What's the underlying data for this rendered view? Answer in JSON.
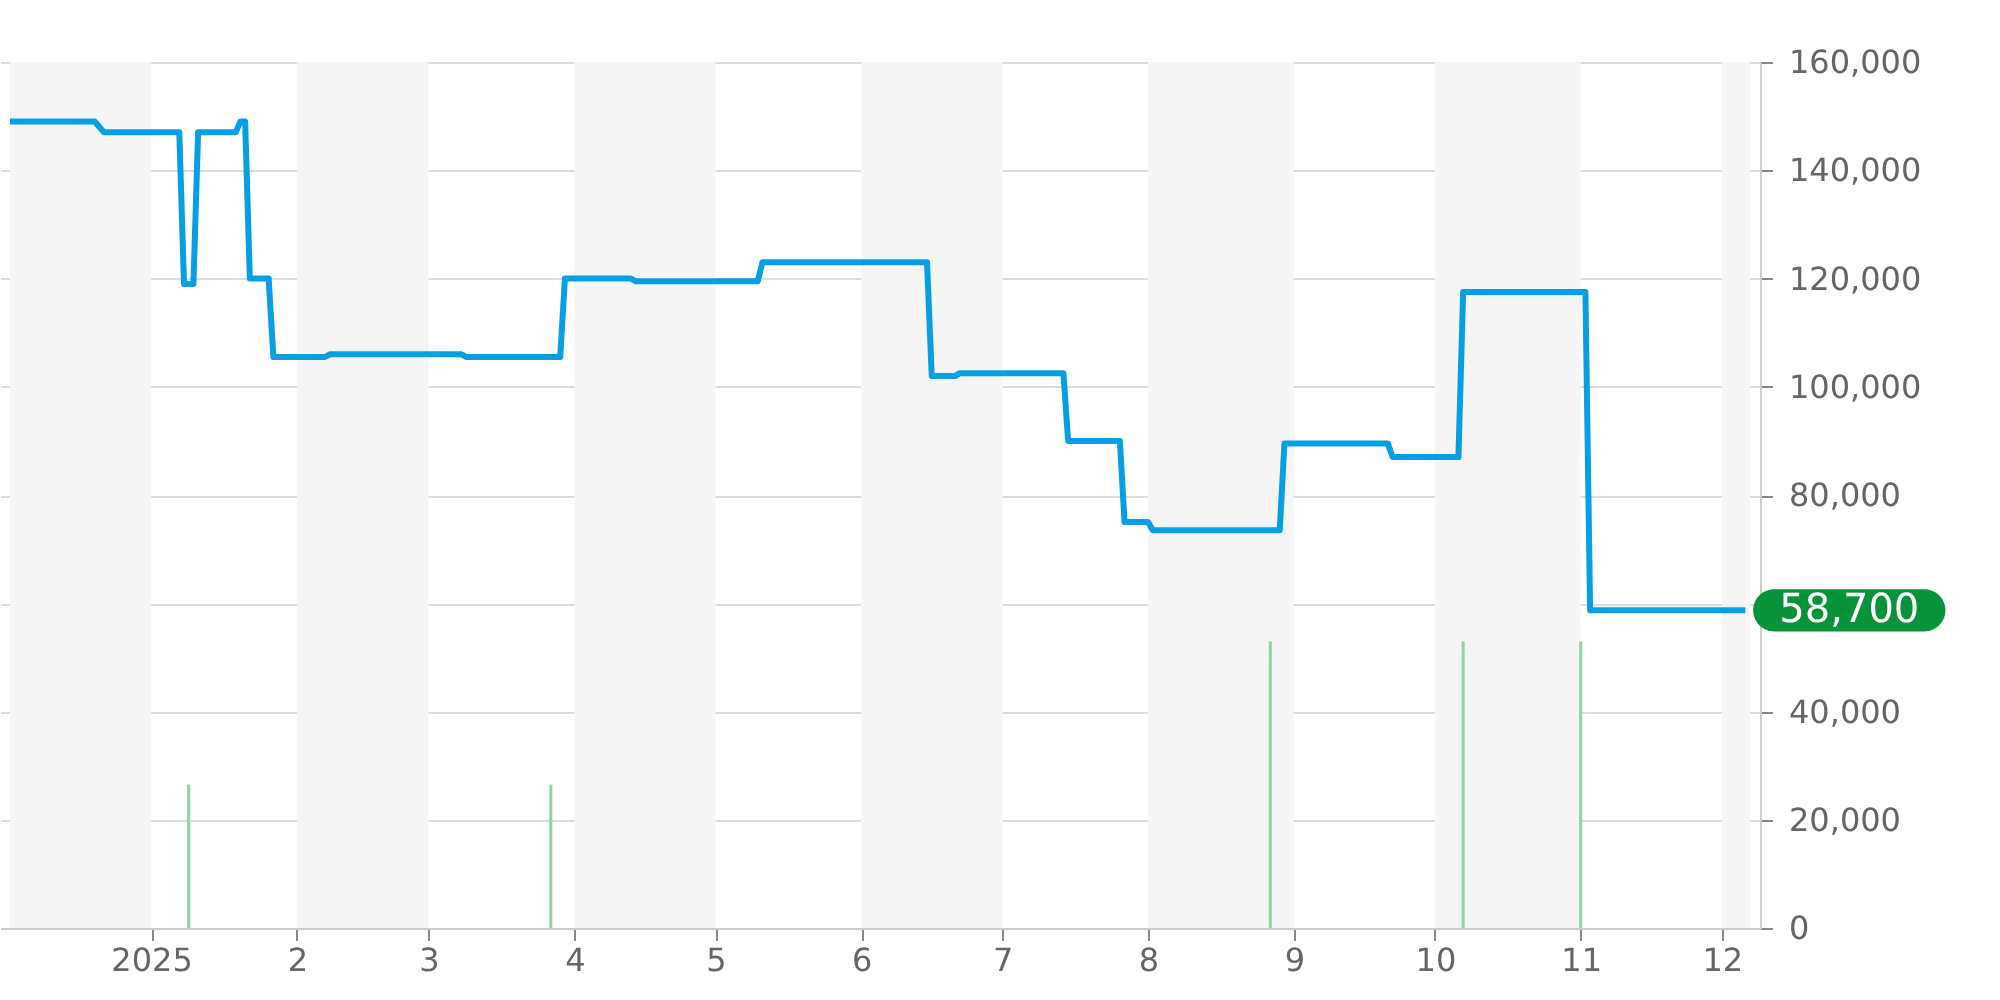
{
  "chart_data": {
    "type": "line",
    "xlim": [
      "2024-12-02",
      "2025-12-07"
    ],
    "xticks": [
      {
        "value": "2025-01-01",
        "label": "2025"
      },
      {
        "value": "2025-02-01",
        "label": "2"
      },
      {
        "value": "2025-03-01",
        "label": "3"
      },
      {
        "value": "2025-04-01",
        "label": "4"
      },
      {
        "value": "2025-05-01",
        "label": "5"
      },
      {
        "value": "2025-06-01",
        "label": "6"
      },
      {
        "value": "2025-07-01",
        "label": "7"
      },
      {
        "value": "2025-08-01",
        "label": "8"
      },
      {
        "value": "2025-09-01",
        "label": "9"
      },
      {
        "value": "2025-10-01",
        "label": "10"
      },
      {
        "value": "2025-11-01",
        "label": "11"
      },
      {
        "value": "2025-12-01",
        "label": "12"
      }
    ],
    "ylim": [
      0,
      160000
    ],
    "yticks": [
      0,
      {
        "value": 20000,
        "label": "20,000"
      },
      {
        "value": 40000,
        "label": "40,000"
      },
      {
        "value": 60000,
        "label": null
      },
      {
        "value": 80000,
        "label": "80,000"
      },
      {
        "value": 100000,
        "label": "100,000"
      },
      {
        "value": 120000,
        "label": "120,000"
      },
      {
        "value": 140000,
        "label": "140,000"
      },
      {
        "value": 160000,
        "label": "160,000"
      }
    ],
    "grid": "y",
    "marker": "none",
    "line_style": "solid",
    "series": [
      {
        "color": "#069fe3",
        "x": [
          "2024-12-02",
          "2024-12-20",
          "2024-12-22",
          "2025-01-07",
          "2025-01-08",
          "2025-01-10",
          "2025-01-11",
          "2025-01-19",
          "2025-01-20",
          "2025-01-21",
          "2025-01-22",
          "2025-01-26",
          "2025-01-27",
          "2025-02-07",
          "2025-02-08",
          "2025-03-08",
          "2025-03-09",
          "2025-03-29",
          "2025-03-30",
          "2025-04-13",
          "2025-04-14",
          "2025-05-10",
          "2025-05-11",
          "2025-06-15",
          "2025-06-16",
          "2025-06-21",
          "2025-06-22",
          "2025-07-14",
          "2025-07-15",
          "2025-07-26",
          "2025-07-27",
          "2025-08-01",
          "2025-08-02",
          "2025-08-29",
          "2025-08-30",
          "2025-09-21",
          "2025-09-22",
          "2025-10-06",
          "2025-10-07",
          "2025-11-02",
          "2025-11-03",
          "2025-12-06"
        ],
        "values": [
          149000,
          149000,
          147000,
          147000,
          119000,
          119000,
          147000,
          147000,
          149000,
          149000,
          120000,
          120000,
          105500,
          105500,
          106000,
          106000,
          105500,
          105500,
          120000,
          120000,
          119500,
          119500,
          123000,
          123000,
          102000,
          102000,
          102500,
          102500,
          90000,
          90000,
          75000,
          75000,
          73500,
          73500,
          89500,
          89500,
          87000,
          87000,
          117500,
          117500,
          58700,
          58700
        ]
      },
      {
        "type": "bar",
        "color": "#90d4a0",
        "x": [
          "2025-01-09",
          "2025-03-27",
          "2025-08-27",
          "2025-10-07",
          "2025-11-01"
        ],
        "values": [
          26500,
          26500,
          53000,
          53000,
          53000
        ]
      }
    ],
    "bands": [
      {
        "axis": "x",
        "from": "2024-12-02",
        "to": "2025-01-01",
        "color": "#f5f5f5"
      },
      {
        "axis": "x",
        "from": "2025-02-01",
        "to": "2025-03-01",
        "color": "#f5f5f5"
      },
      {
        "axis": "x",
        "from": "2025-04-01",
        "to": "2025-05-01",
        "color": "#f5f5f5"
      },
      {
        "axis": "x",
        "from": "2025-06-01",
        "to": "2025-07-01",
        "color": "#f5f5f5"
      },
      {
        "axis": "x",
        "from": "2025-08-01",
        "to": "2025-09-01",
        "color": "#f5f5f5"
      },
      {
        "axis": "x",
        "from": "2025-10-01",
        "to": "2025-11-01",
        "color": "#f5f5f5"
      },
      {
        "axis": "x",
        "from": "2025-12-01",
        "to": "2025-12-07",
        "color": "#f5f5f5"
      }
    ],
    "annotations": [
      {
        "text": "58,700",
        "x": "2025-12-06",
        "y": 58700
      }
    ]
  }
}
